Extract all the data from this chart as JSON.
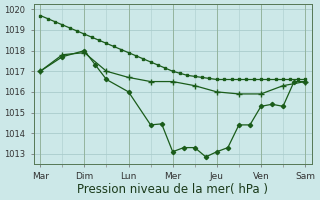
{
  "bg_color": "#cce8e8",
  "grid_color": "#aacccc",
  "line_color": "#1a5c1a",
  "xlabel": "Pression niveau de la mer( hPa )",
  "xlabel_fontsize": 8.5,
  "xtick_labels": [
    "Mar",
    "Dim",
    "Lun",
    "Mer",
    "Jeu",
    "Ven",
    "Sam"
  ],
  "ylim": [
    1012.5,
    1020.25
  ],
  "yticks": [
    1013,
    1014,
    1015,
    1016,
    1017,
    1018,
    1019,
    1020
  ],
  "line1_x": [
    0,
    0.167,
    0.333,
    0.5,
    0.667,
    0.833,
    1.0,
    1.167,
    1.333,
    1.5,
    1.667,
    1.833,
    2.0,
    2.167,
    2.333,
    2.5,
    2.667,
    2.833,
    3.0,
    3.167,
    3.333,
    3.5,
    3.667,
    3.833,
    4.0,
    4.167,
    4.333,
    4.5,
    4.667,
    4.833,
    5.0,
    5.167,
    5.333,
    5.5,
    5.667,
    5.833,
    6.0
  ],
  "line1_y": [
    1019.7,
    1019.55,
    1019.4,
    1019.25,
    1019.1,
    1018.95,
    1018.8,
    1018.65,
    1018.5,
    1018.35,
    1018.2,
    1018.05,
    1017.9,
    1017.75,
    1017.6,
    1017.45,
    1017.3,
    1017.15,
    1017.0,
    1016.9,
    1016.8,
    1016.75,
    1016.7,
    1016.65,
    1016.6,
    1016.6,
    1016.6,
    1016.6,
    1016.6,
    1016.6,
    1016.6,
    1016.6,
    1016.6,
    1016.6,
    1016.6,
    1016.6,
    1016.6
  ],
  "line2_x": [
    0,
    0.5,
    1.0,
    1.5,
    2.0,
    2.5,
    3.0,
    3.5,
    4.0,
    4.5,
    5.0,
    5.5,
    6.0
  ],
  "line2_y": [
    1017.0,
    1017.8,
    1017.9,
    1017.0,
    1016.7,
    1016.5,
    1016.5,
    1016.3,
    1016.0,
    1015.9,
    1015.9,
    1016.3,
    1016.5
  ],
  "line3_x": [
    0,
    0.5,
    1.0,
    1.25,
    1.5,
    2.0,
    2.5,
    2.75,
    3.0,
    3.25,
    3.5,
    3.75,
    4.0,
    4.25,
    4.5,
    4.75,
    5.0,
    5.25,
    5.5,
    5.75,
    6.0
  ],
  "line3_y": [
    1017.0,
    1017.7,
    1018.0,
    1017.3,
    1016.6,
    1016.0,
    1014.4,
    1014.45,
    1013.1,
    1013.3,
    1013.3,
    1012.85,
    1013.1,
    1013.3,
    1014.4,
    1014.4,
    1015.3,
    1015.4,
    1015.3,
    1016.5,
    1016.5
  ],
  "xtick_positions": [
    0,
    1,
    2,
    3,
    4,
    5,
    6
  ],
  "minor_xtick_positions": [
    0.5,
    1.5,
    2.5,
    3.5,
    4.5,
    5.5
  ]
}
